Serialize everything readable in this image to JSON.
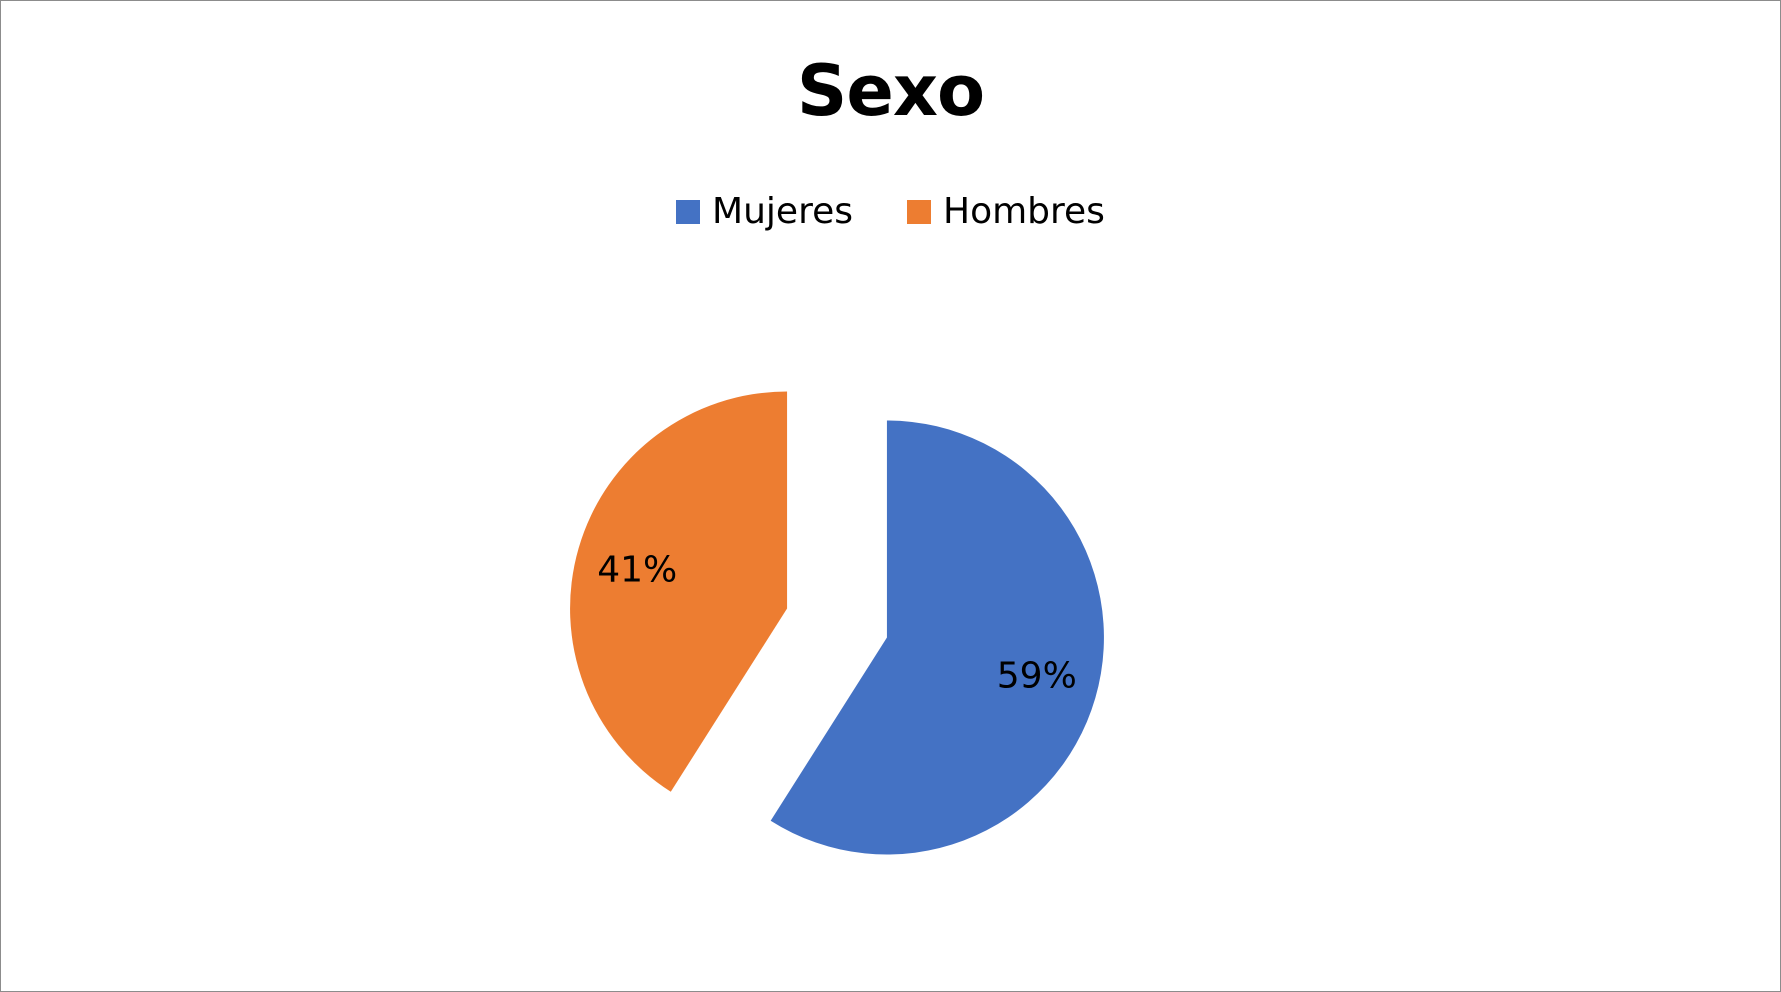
{
  "chart_data": {
    "type": "pie",
    "title": "Sexo",
    "categories": [
      "Mujeres",
      "Hombres"
    ],
    "values": [
      59,
      41
    ],
    "data_labels": [
      "59%",
      "41%"
    ],
    "colors": [
      "#4472C4",
      "#ED7D31"
    ],
    "legend_position": "top",
    "exploded": true
  }
}
